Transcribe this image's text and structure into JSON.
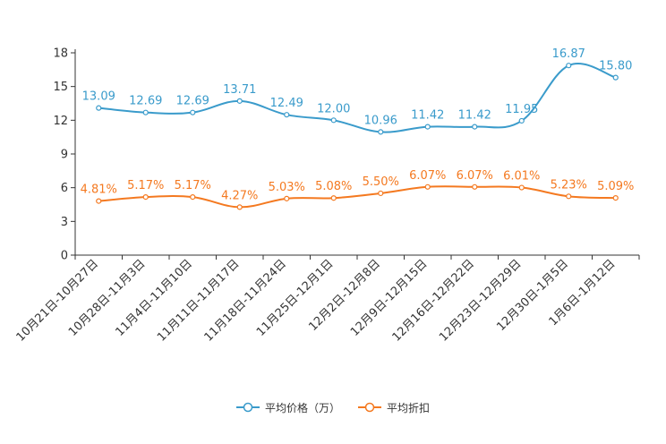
{
  "chart_data": {
    "type": "line",
    "title": "",
    "xlabel": "",
    "ylabel": "",
    "ylim": [
      0,
      18
    ],
    "yticks": [
      0,
      3,
      6,
      9,
      12,
      15,
      18
    ],
    "grid": false,
    "legend_position": "bottom-center",
    "categories": [
      "10月21日-10月27日",
      "10月28日-11月3日",
      "11月4日-11月10日",
      "11月11日-11月17日",
      "11月18日-11月24日",
      "11月25日-12月1日",
      "12月2日-12月8日",
      "12月9日-12月15日",
      "12月16日-12月22日",
      "12月23日-12月29日",
      "12月30日-1月5日",
      "1月6日-1月12日"
    ],
    "series": [
      {
        "name": "平均价格（万）",
        "color": "#3a9bcb",
        "values": [
          13.09,
          12.69,
          12.69,
          13.71,
          12.49,
          12.0,
          10.96,
          11.42,
          11.42,
          11.95,
          16.87,
          15.8
        ],
        "labels": [
          "13.09",
          "12.69",
          "12.69",
          "13.71",
          "12.49",
          "12.00",
          "10.96",
          "11.42",
          "11.42",
          "11.95",
          "16.87",
          "15.80"
        ]
      },
      {
        "name": "平均折扣",
        "color": "#f47920",
        "values": [
          4.81,
          5.17,
          5.17,
          4.27,
          5.03,
          5.08,
          5.5,
          6.07,
          6.07,
          6.01,
          5.23,
          5.09
        ],
        "labels": [
          "4.81%",
          "5.17%",
          "5.17%",
          "4.27%",
          "5.03%",
          "5.08%",
          "5.50%",
          "6.07%",
          "6.07%",
          "6.01%",
          "5.23%",
          "5.09%"
        ]
      }
    ]
  }
}
